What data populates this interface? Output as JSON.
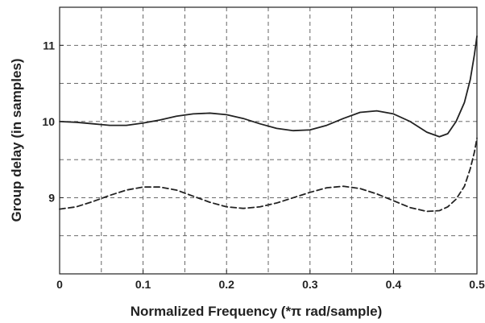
{
  "chart_data": {
    "type": "line",
    "title": "",
    "xlabel": "Normalized Frequency (*π rad/sample)",
    "ylabel": "Group delay  (in samples)",
    "xlim": [
      0,
      0.5
    ],
    "ylim": [
      8,
      11.5
    ],
    "x_ticks": [
      {
        "value": 0,
        "label": "0"
      },
      {
        "value": 0.1,
        "label": "0.1"
      },
      {
        "value": 0.2,
        "label": "0.2"
      },
      {
        "value": 0.3,
        "label": "0.3"
      },
      {
        "value": 0.4,
        "label": "0.4"
      },
      {
        "value": 0.5,
        "label": "0.5"
      }
    ],
    "y_ticks": [
      {
        "value": 9,
        "label": "9"
      },
      {
        "value": 10,
        "label": "10"
      },
      {
        "value": 11,
        "label": "11"
      }
    ],
    "grid": true,
    "grid_x": [
      0.05,
      0.1,
      0.15,
      0.2,
      0.25,
      0.3,
      0.35,
      0.4,
      0.45
    ],
    "grid_y": [
      8.5,
      9,
      9.5,
      10,
      10.5,
      11
    ],
    "colors": {
      "line": "#222222",
      "grid": "#555555",
      "axis": "#222222",
      "background": "#ffffff"
    },
    "series": [
      {
        "style": "solid",
        "points": [
          [
            0.0,
            10.0
          ],
          [
            0.02,
            9.99
          ],
          [
            0.04,
            9.97
          ],
          [
            0.06,
            9.95
          ],
          [
            0.08,
            9.95
          ],
          [
            0.1,
            9.98
          ],
          [
            0.12,
            10.02
          ],
          [
            0.14,
            10.07
          ],
          [
            0.16,
            10.1
          ],
          [
            0.18,
            10.11
          ],
          [
            0.2,
            10.09
          ],
          [
            0.22,
            10.04
          ],
          [
            0.24,
            9.97
          ],
          [
            0.26,
            9.91
          ],
          [
            0.28,
            9.88
          ],
          [
            0.3,
            9.89
          ],
          [
            0.32,
            9.95
          ],
          [
            0.34,
            10.04
          ],
          [
            0.36,
            10.12
          ],
          [
            0.38,
            10.14
          ],
          [
            0.4,
            10.1
          ],
          [
            0.42,
            10.0
          ],
          [
            0.44,
            9.86
          ],
          [
            0.455,
            9.8
          ],
          [
            0.465,
            9.84
          ],
          [
            0.475,
            10.0
          ],
          [
            0.485,
            10.25
          ],
          [
            0.492,
            10.55
          ],
          [
            0.497,
            10.88
          ],
          [
            0.5,
            11.12
          ]
        ]
      },
      {
        "style": "dashed",
        "points": [
          [
            0.0,
            8.85
          ],
          [
            0.02,
            8.88
          ],
          [
            0.04,
            8.95
          ],
          [
            0.06,
            9.03
          ],
          [
            0.08,
            9.1
          ],
          [
            0.1,
            9.14
          ],
          [
            0.12,
            9.14
          ],
          [
            0.14,
            9.1
          ],
          [
            0.16,
            9.02
          ],
          [
            0.18,
            8.94
          ],
          [
            0.2,
            8.88
          ],
          [
            0.22,
            8.86
          ],
          [
            0.24,
            8.88
          ],
          [
            0.26,
            8.93
          ],
          [
            0.28,
            9.0
          ],
          [
            0.3,
            9.07
          ],
          [
            0.32,
            9.13
          ],
          [
            0.34,
            9.15
          ],
          [
            0.36,
            9.12
          ],
          [
            0.38,
            9.05
          ],
          [
            0.4,
            8.96
          ],
          [
            0.42,
            8.87
          ],
          [
            0.44,
            8.82
          ],
          [
            0.455,
            8.83
          ],
          [
            0.465,
            8.88
          ],
          [
            0.475,
            8.98
          ],
          [
            0.485,
            9.15
          ],
          [
            0.492,
            9.38
          ],
          [
            0.497,
            9.6
          ],
          [
            0.5,
            9.78
          ]
        ]
      }
    ]
  }
}
